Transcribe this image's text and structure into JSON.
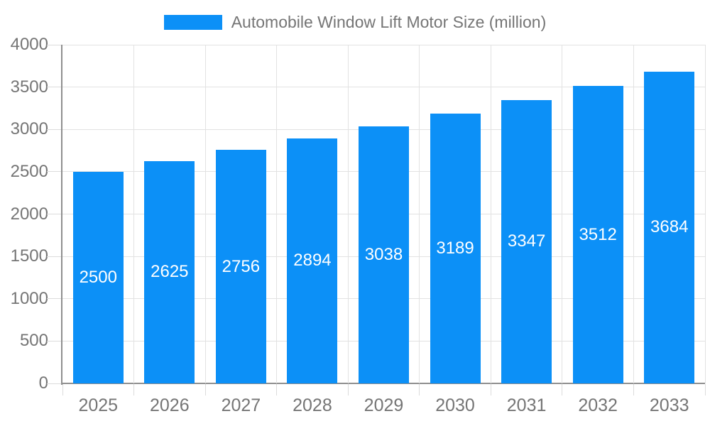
{
  "chart_data": {
    "type": "bar",
    "title": "Automobile Window Lift Motor Size (million)",
    "legend_entries": [
      "Automobile Window Lift Motor Size (million)"
    ],
    "legend_position": "top-center",
    "categories": [
      "2025",
      "2026",
      "2027",
      "2028",
      "2029",
      "2030",
      "2031",
      "2032",
      "2033"
    ],
    "series": [
      {
        "name": "Automobile Window Lift Motor Size (million)",
        "values": [
          2500,
          2625,
          2756,
          2894,
          3038,
          3189,
          3347,
          3512,
          3684
        ]
      }
    ],
    "data_labels_shown": true,
    "xlabel": "",
    "ylabel": "",
    "ylim": [
      0,
      4000
    ],
    "y_tick_step": 500,
    "y_tick_labels": [
      "0",
      "500",
      "1000",
      "1500",
      "2000",
      "2500",
      "3000",
      "3500",
      "4000"
    ],
    "grid": true,
    "colors": {
      "bar": "#0c90f7",
      "bar_label_text": "#ffffff",
      "axis_text": "#757575",
      "grid_line": "#e2e2e2",
      "axis_line": "#8f8f8f",
      "tick_mark": "#dcdcdc",
      "background": "#ffffff"
    }
  }
}
